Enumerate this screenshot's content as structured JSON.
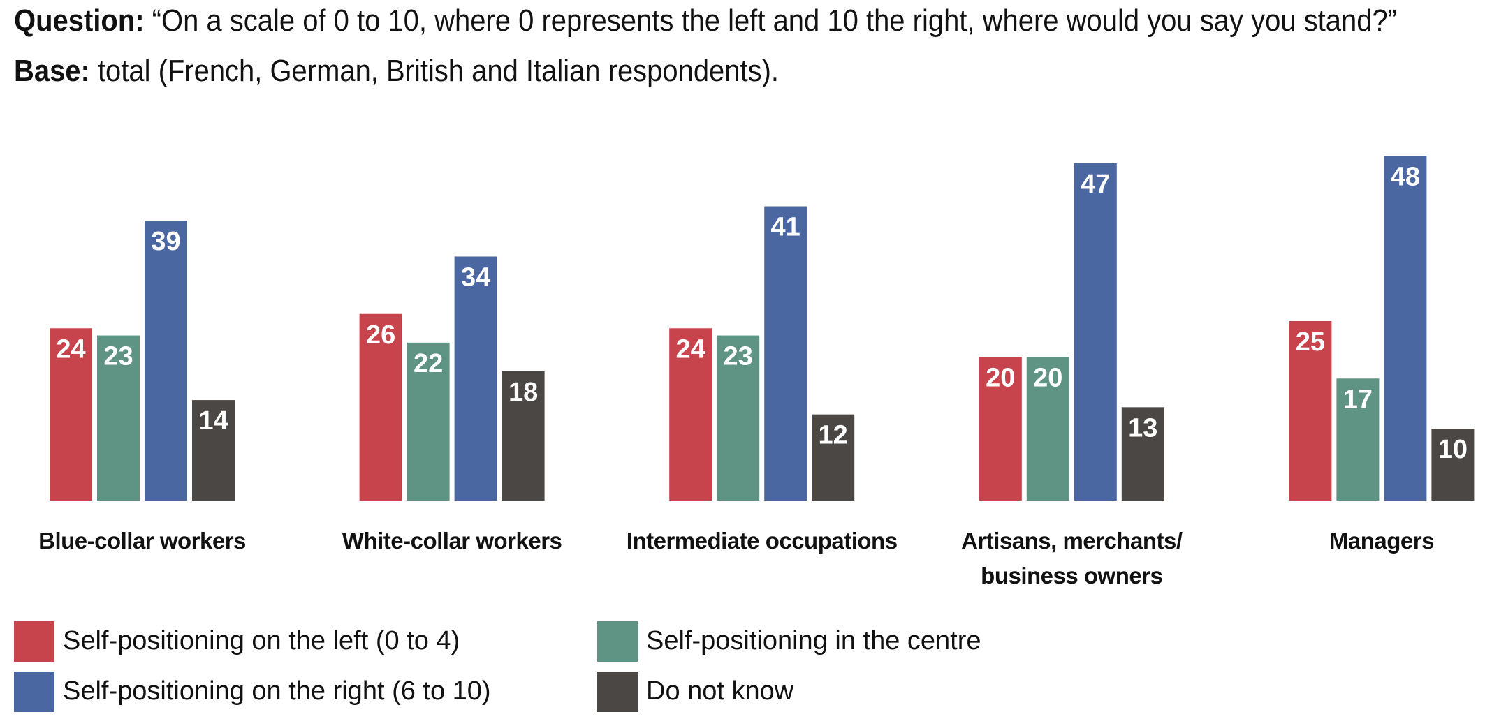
{
  "chart_data": {
    "type": "bar",
    "title": [
      "Question:",
      "“On a scale of 0 to 10, where 0 represents the left and 10 the right, where would you say you stand?”"
    ],
    "subtitle": [
      "Base:",
      "total (French, German, British and Italian respondents)."
    ],
    "categories": [
      "Blue-collar workers",
      "White-collar workers",
      "Intermediate occupations",
      "Artisans, merchants/ business owners",
      "Managers"
    ],
    "series": [
      {
        "name": "Self-positioning on the left (0 to 4)",
        "color": "#c8444c",
        "values": [
          24,
          26,
          24,
          20,
          25
        ]
      },
      {
        "name": "Self-positioning in the centre",
        "color": "#5f9484",
        "values": [
          23,
          22,
          23,
          20,
          17
        ]
      },
      {
        "name": "Self-positioning on the right (6 to 10)",
        "color": "#4a67a1",
        "values": [
          39,
          34,
          41,
          47,
          48
        ]
      },
      {
        "name": "Do not know",
        "color": "#4a4744",
        "values": [
          14,
          18,
          12,
          13,
          10
        ]
      }
    ]
  }
}
